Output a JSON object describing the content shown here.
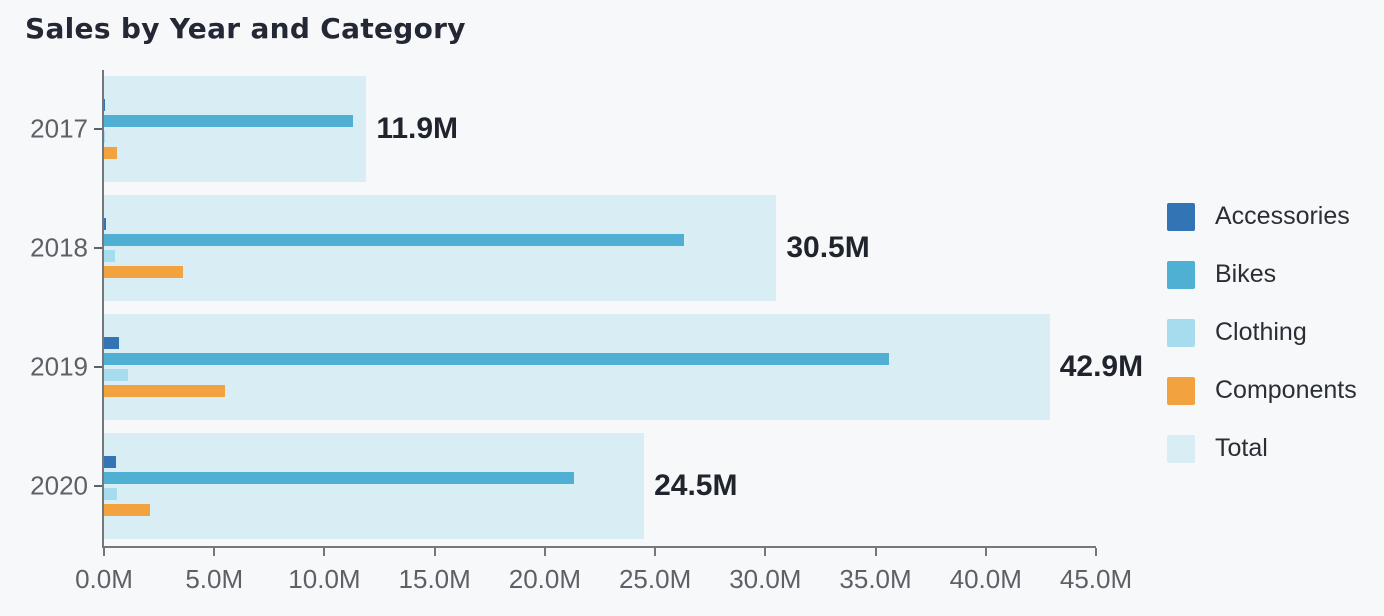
{
  "title": "Sales by Year and Category",
  "colors": {
    "background": "#f7f8fa",
    "title_text": "#232834",
    "data_label_text": "#20252d",
    "axis_text": "#5d6167",
    "axis_line": "#74787c",
    "legend_text": "#2a2f36",
    "accessories": "#3375b4",
    "bikes": "#4fb0d3",
    "clothing": "#a6dcee",
    "components": "#f2a23e",
    "total": "#d9edf4"
  },
  "chart_data": {
    "type": "bar",
    "orientation": "horizontal",
    "title": "Sales by Year and Category",
    "xlabel": "",
    "ylabel": "",
    "grid": false,
    "legend_position": "right",
    "categories": [
      "2017",
      "2018",
      "2019",
      "2020"
    ],
    "series": [
      {
        "name": "Accessories",
        "color_key": "accessories",
        "values": [
          0.05,
          0.1,
          0.7,
          0.55
        ]
      },
      {
        "name": "Bikes",
        "color_key": "bikes",
        "values": [
          11.3,
          26.3,
          35.6,
          21.3
        ]
      },
      {
        "name": "Clothing",
        "color_key": "clothing",
        "values": [
          0.03,
          0.5,
          1.1,
          0.6
        ]
      },
      {
        "name": "Components",
        "color_key": "components",
        "values": [
          0.6,
          3.6,
          5.5,
          2.1
        ]
      },
      {
        "name": "Total",
        "color_key": "total",
        "values": [
          11.9,
          30.5,
          42.9,
          24.5
        ]
      }
    ],
    "total_labels": [
      "11.9M",
      "30.5M",
      "42.9M",
      "24.5M"
    ],
    "x_tick_values": [
      0,
      5,
      10,
      15,
      20,
      25,
      30,
      35,
      40,
      45
    ],
    "x_tick_labels": [
      "0.0M",
      "5.0M",
      "10.0M",
      "15.0M",
      "20.0M",
      "25.0M",
      "30.0M",
      "35.0M",
      "40.0M",
      "45.0M"
    ],
    "xlim": [
      0,
      45
    ],
    "unit": "M",
    "legend": [
      "Accessories",
      "Bikes",
      "Clothing",
      "Components",
      "Total"
    ]
  }
}
